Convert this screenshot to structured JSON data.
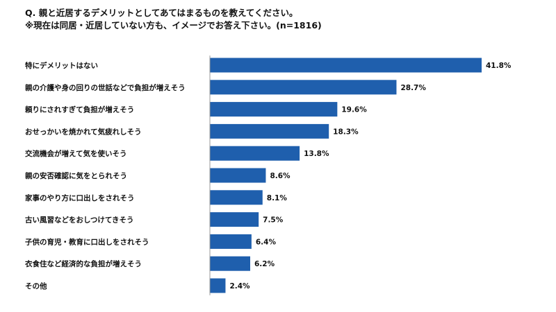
{
  "chart_data": {
    "type": "bar",
    "orientation": "horizontal",
    "title": "Q. 親と近居するデメリットとしてあてはまるものを教えてください。",
    "subtitle": "※現在は同居・近居していない方も、イメージでお答え下さい。(n=1816)",
    "categories": [
      "特にデメリットはない",
      "親の介護や身の回りの世話などで負担が増えそう",
      "頼りにされすぎて負担が増えそう",
      "おせっかいを焼かれて気疲れしそう",
      "交流機会が増えて気を使いそう",
      "親の安否確認に気をとられそう",
      "家事のやり方に口出しをされそう",
      "古い風習などをおしつけてきそう",
      "子供の育児・教育に口出しをされそう",
      "衣食住など経済的な負担が増えそう",
      "その他"
    ],
    "values": [
      41.8,
      28.7,
      19.6,
      18.3,
      13.8,
      8.6,
      8.1,
      7.5,
      6.4,
      6.2,
      2.4
    ],
    "value_labels": [
      "41.8%",
      "28.7%",
      "19.6%",
      "18.3%",
      "13.8%",
      "8.6%",
      "8.1%",
      "7.5%",
      "6.4%",
      "6.2%",
      "2.4%"
    ],
    "bar_color": "#1f5fad",
    "axis_color": "#999999",
    "xlim": [
      0,
      41.8
    ],
    "grid": false,
    "legend": "none"
  }
}
